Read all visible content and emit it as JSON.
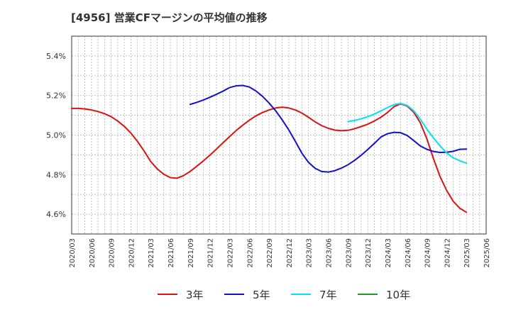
{
  "chart_data": {
    "type": "line",
    "title": "[4956]  営業CFマージンの平均値の推移",
    "xlabel": "",
    "ylabel": "",
    "ylim": [
      4.5,
      5.5
    ],
    "yticks": [
      4.6,
      4.8,
      5.0,
      5.2,
      5.4
    ],
    "ytick_labels": [
      "4.6%",
      "4.8%",
      "5.0%",
      "5.2%",
      "5.4%"
    ],
    "x_start": "2020/03",
    "x_end": "2025/06",
    "xtick_labels": [
      "2020/03",
      "2020/06",
      "2020/09",
      "2020/12",
      "2021/03",
      "2021/06",
      "2021/09",
      "2021/12",
      "2022/03",
      "2022/06",
      "2022/09",
      "2022/12",
      "2023/03",
      "2023/06",
      "2023/09",
      "2023/12",
      "2024/03",
      "2024/06",
      "2024/09",
      "2024/12",
      "2025/03",
      "2025/06"
    ],
    "grid": true,
    "legend_position": "bottom",
    "series": [
      {
        "name": "3年",
        "color": "#dd1111",
        "x": [
          "2020/03",
          "2020/04",
          "2020/05",
          "2020/06",
          "2020/07",
          "2020/08",
          "2020/09",
          "2020/10",
          "2020/11",
          "2020/12",
          "2021/01",
          "2021/02",
          "2021/03",
          "2021/04",
          "2021/05",
          "2021/06",
          "2021/07",
          "2021/08",
          "2021/09",
          "2021/10",
          "2021/11",
          "2021/12",
          "2022/01",
          "2022/02",
          "2022/03",
          "2022/04",
          "2022/05",
          "2022/06",
          "2022/07",
          "2022/08",
          "2022/09",
          "2022/10",
          "2022/11",
          "2022/12",
          "2023/01",
          "2023/02",
          "2023/03",
          "2023/04",
          "2023/05",
          "2023/06",
          "2023/07",
          "2023/08",
          "2023/09",
          "2023/10",
          "2023/11",
          "2023/12",
          "2024/01",
          "2024/02",
          "2024/03",
          "2024/04",
          "2024/05",
          "2024/06",
          "2024/07",
          "2024/08",
          "2024/09",
          "2024/10",
          "2024/11",
          "2024/12",
          "2025/01",
          "2025/02",
          "2025/03"
        ],
        "values": [
          5.135,
          5.135,
          5.132,
          5.127,
          5.119,
          5.108,
          5.093,
          5.071,
          5.044,
          5.01,
          4.968,
          4.92,
          4.867,
          4.829,
          4.802,
          4.785,
          4.782,
          4.795,
          4.816,
          4.842,
          4.869,
          4.898,
          4.929,
          4.961,
          4.992,
          5.023,
          5.05,
          5.075,
          5.097,
          5.114,
          5.127,
          5.137,
          5.141,
          5.137,
          5.127,
          5.111,
          5.09,
          5.067,
          5.048,
          5.034,
          5.025,
          5.022,
          5.024,
          5.032,
          5.043,
          5.055,
          5.071,
          5.09,
          5.114,
          5.144,
          5.158,
          5.147,
          5.115,
          5.062,
          4.98,
          4.88,
          4.79,
          4.72,
          4.665,
          4.63,
          4.61
        ]
      },
      {
        "name": "5年",
        "color": "#1111cc",
        "x": [
          "2021/09",
          "2021/10",
          "2021/11",
          "2021/12",
          "2022/01",
          "2022/02",
          "2022/03",
          "2022/04",
          "2022/05",
          "2022/06",
          "2022/07",
          "2022/08",
          "2022/09",
          "2022/10",
          "2022/11",
          "2022/12",
          "2023/01",
          "2023/02",
          "2023/03",
          "2023/04",
          "2023/05",
          "2023/06",
          "2023/07",
          "2023/08",
          "2023/09",
          "2023/10",
          "2023/11",
          "2023/12",
          "2024/01",
          "2024/02",
          "2024/03",
          "2024/04",
          "2024/05",
          "2024/06",
          "2024/07",
          "2024/08",
          "2024/09",
          "2024/10",
          "2024/11",
          "2024/12",
          "2025/01",
          "2025/02",
          "2025/03"
        ],
        "values": [
          5.155,
          5.165,
          5.177,
          5.191,
          5.206,
          5.222,
          5.24,
          5.249,
          5.251,
          5.243,
          5.223,
          5.196,
          5.162,
          5.123,
          5.077,
          5.026,
          4.968,
          4.908,
          4.862,
          4.832,
          4.816,
          4.813,
          4.82,
          4.833,
          4.85,
          4.872,
          4.898,
          4.927,
          4.958,
          4.99,
          5.007,
          5.014,
          5.012,
          4.998,
          4.972,
          4.945,
          4.928,
          4.917,
          4.912,
          4.913,
          4.918,
          4.928,
          4.929
        ]
      },
      {
        "name": "7年",
        "color": "#00e5ee",
        "x": [
          "2023/09",
          "2023/10",
          "2023/11",
          "2023/12",
          "2024/01",
          "2024/02",
          "2024/03",
          "2024/04",
          "2024/05",
          "2024/06",
          "2024/07",
          "2024/08",
          "2024/09",
          "2024/10",
          "2024/11",
          "2024/12",
          "2025/01",
          "2025/02",
          "2025/03"
        ],
        "values": [
          5.068,
          5.074,
          5.082,
          5.093,
          5.106,
          5.122,
          5.139,
          5.154,
          5.16,
          5.15,
          5.123,
          5.08,
          5.03,
          4.985,
          4.945,
          4.91,
          4.885,
          4.87,
          4.858
        ]
      },
      {
        "name": "10年",
        "color": "#229922",
        "x": [],
        "values": []
      }
    ]
  }
}
